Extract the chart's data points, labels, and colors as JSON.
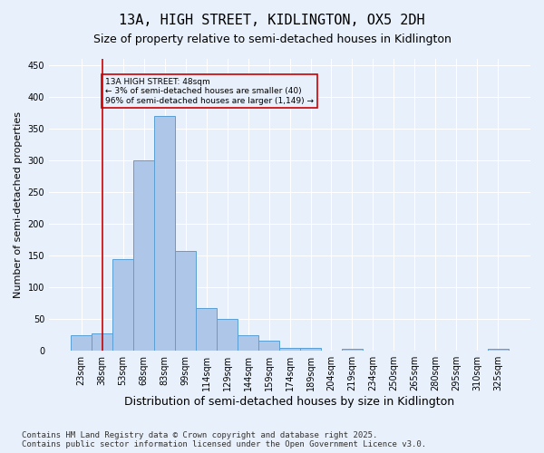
{
  "title": "13A, HIGH STREET, KIDLINGTON, OX5 2DH",
  "subtitle": "Size of property relative to semi-detached houses in Kidlington",
  "xlabel": "Distribution of semi-detached houses by size in Kidlington",
  "ylabel": "Number of semi-detached properties",
  "categories": [
    "23sqm",
    "38sqm",
    "53sqm",
    "68sqm",
    "83sqm",
    "99sqm",
    "114sqm",
    "129sqm",
    "144sqm",
    "159sqm",
    "174sqm",
    "189sqm",
    "204sqm",
    "219sqm",
    "234sqm",
    "250sqm",
    "265sqm",
    "280sqm",
    "295sqm",
    "310sqm",
    "325sqm"
  ],
  "values": [
    25,
    28,
    145,
    300,
    370,
    158,
    68,
    50,
    25,
    16,
    5,
    5,
    0,
    3,
    0,
    0,
    0,
    0,
    0,
    0,
    3
  ],
  "bar_color": "#aec6e8",
  "bar_edge_color": "#5a9fd4",
  "bg_color": "#e8f0fb",
  "grid_color": "#ffffff",
  "vline_x": 1,
  "vline_color": "#cc0000",
  "annotation_text": "13A HIGH STREET: 48sqm\n← 3% of semi-detached houses are smaller (40)\n96% of semi-detached houses are larger (1,149) →",
  "annotation_box_color": "#cc0000",
  "ylim": [
    0,
    460
  ],
  "yticks": [
    0,
    50,
    100,
    150,
    200,
    250,
    300,
    350,
    400,
    450
  ],
  "footer": "Contains HM Land Registry data © Crown copyright and database right 2025.\nContains public sector information licensed under the Open Government Licence v3.0.",
  "title_fontsize": 11,
  "subtitle_fontsize": 9,
  "xlabel_fontsize": 9,
  "ylabel_fontsize": 8,
  "tick_fontsize": 7,
  "footer_fontsize": 6.5
}
